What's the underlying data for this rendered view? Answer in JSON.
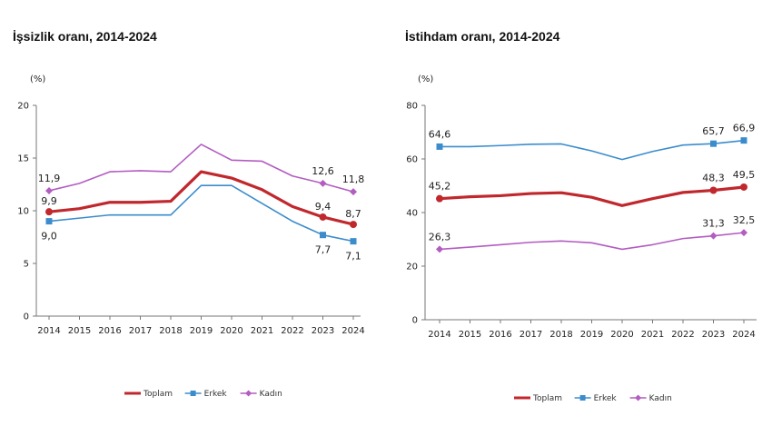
{
  "chart_data": [
    {
      "type": "line",
      "title": "İşsizlik oranı, 2014-2024",
      "unit": "(%)",
      "ylim": [
        0,
        20
      ],
      "yticks": [
        0,
        5,
        10,
        15,
        20
      ],
      "categories": [
        "2014",
        "2015",
        "2016",
        "2017",
        "2018",
        "2019",
        "2020",
        "2021",
        "2022",
        "2023",
        "2024"
      ],
      "grid": false,
      "legend": "bottom-center",
      "series": [
        {
          "name": "Toplam",
          "color": "#c0282d",
          "marker": "none",
          "values": [
            9.9,
            10.2,
            10.8,
            10.8,
            10.9,
            13.7,
            13.1,
            12.0,
            10.4,
            9.4,
            8.7
          ],
          "labels": {
            "0": "9,9",
            "9": "9,4",
            "10": "8,7"
          }
        },
        {
          "name": "Erkek",
          "color": "#3b8ccc",
          "marker": "square",
          "values": [
            9.0,
            9.3,
            9.6,
            9.6,
            9.6,
            12.4,
            12.4,
            10.7,
            9.0,
            7.7,
            7.1
          ],
          "labels": {
            "0": "9,0",
            "9": "7,7",
            "10": "7,1"
          }
        },
        {
          "name": "Kadın",
          "color": "#b35cc2",
          "marker": "diamond",
          "values": [
            11.9,
            12.6,
            13.7,
            13.8,
            13.7,
            16.3,
            14.8,
            14.7,
            13.3,
            12.6,
            11.8
          ],
          "labels": {
            "0": "11,9",
            "9": "12,6",
            "10": "11,8"
          }
        }
      ]
    },
    {
      "type": "line",
      "title": "İstihdam oranı, 2014-2024",
      "unit": "(%)",
      "ylim": [
        0,
        80
      ],
      "yticks": [
        0,
        20,
        40,
        60,
        80
      ],
      "categories": [
        "2014",
        "2015",
        "2016",
        "2017",
        "2018",
        "2019",
        "2020",
        "2021",
        "2022",
        "2023",
        "2024"
      ],
      "grid": false,
      "legend": "bottom-center",
      "series": [
        {
          "name": "Toplam",
          "color": "#c0282d",
          "marker": "none",
          "values": [
            45.2,
            45.9,
            46.3,
            47.1,
            47.4,
            45.7,
            42.6,
            45.2,
            47.5,
            48.3,
            49.5
          ],
          "labels": {
            "0": "45,2",
            "9": "48,3",
            "10": "49,5"
          }
        },
        {
          "name": "Erkek",
          "color": "#3b8ccc",
          "marker": "square",
          "values": [
            64.6,
            64.6,
            65.0,
            65.5,
            65.6,
            63.0,
            59.8,
            62.8,
            65.2,
            65.7,
            66.9
          ],
          "labels": {
            "0": "64,6",
            "9": "65,7",
            "10": "66,9"
          }
        },
        {
          "name": "Kadın",
          "color": "#b35cc2",
          "marker": "diamond",
          "values": [
            26.3,
            27.1,
            28.0,
            28.9,
            29.4,
            28.7,
            26.3,
            28.0,
            30.3,
            31.3,
            32.5
          ],
          "labels": {
            "0": "26,3",
            "9": "31,3",
            "10": "32,5"
          }
        }
      ]
    }
  ]
}
